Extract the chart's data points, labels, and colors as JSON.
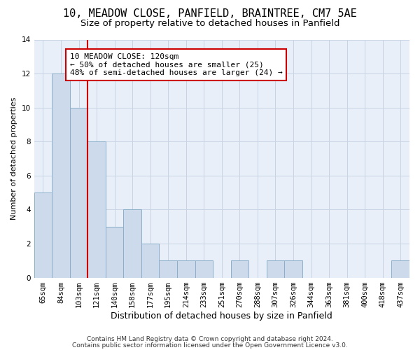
{
  "title1": "10, MEADOW CLOSE, PANFIELD, BRAINTREE, CM7 5AE",
  "title2": "Size of property relative to detached houses in Panfield",
  "xlabel": "Distribution of detached houses by size in Panfield",
  "ylabel": "Number of detached properties",
  "categories": [
    "65sqm",
    "84sqm",
    "103sqm",
    "121sqm",
    "140sqm",
    "158sqm",
    "177sqm",
    "195sqm",
    "214sqm",
    "233sqm",
    "251sqm",
    "270sqm",
    "288sqm",
    "307sqm",
    "326sqm",
    "344sqm",
    "363sqm",
    "381sqm",
    "400sqm",
    "418sqm",
    "437sqm"
  ],
  "values": [
    5,
    12,
    10,
    8,
    3,
    4,
    2,
    1,
    1,
    1,
    0,
    1,
    0,
    1,
    1,
    0,
    0,
    0,
    0,
    0,
    1
  ],
  "bar_color": "#ccdaeb",
  "bar_edge_color": "#8aafc8",
  "vline_x_index": 3,
  "vline_color": "#cc0000",
  "annotation_line1": "10 MEADOW CLOSE: 120sqm",
  "annotation_line2": "← 50% of detached houses are smaller (25)",
  "annotation_line3": "48% of semi-detached houses are larger (24) →",
  "annotation_box_color": "#cc0000",
  "ylim": [
    0,
    14
  ],
  "yticks": [
    0,
    2,
    4,
    6,
    8,
    10,
    12,
    14
  ],
  "grid_color": "#c8d4e4",
  "background_color": "#e8eff8",
  "footer1": "Contains HM Land Registry data © Crown copyright and database right 2024.",
  "footer2": "Contains public sector information licensed under the Open Government Licence v3.0.",
  "title1_fontsize": 11,
  "title2_fontsize": 9.5,
  "xlabel_fontsize": 9,
  "ylabel_fontsize": 8,
  "tick_fontsize": 7.5,
  "annotation_fontsize": 8,
  "footer_fontsize": 6.5
}
